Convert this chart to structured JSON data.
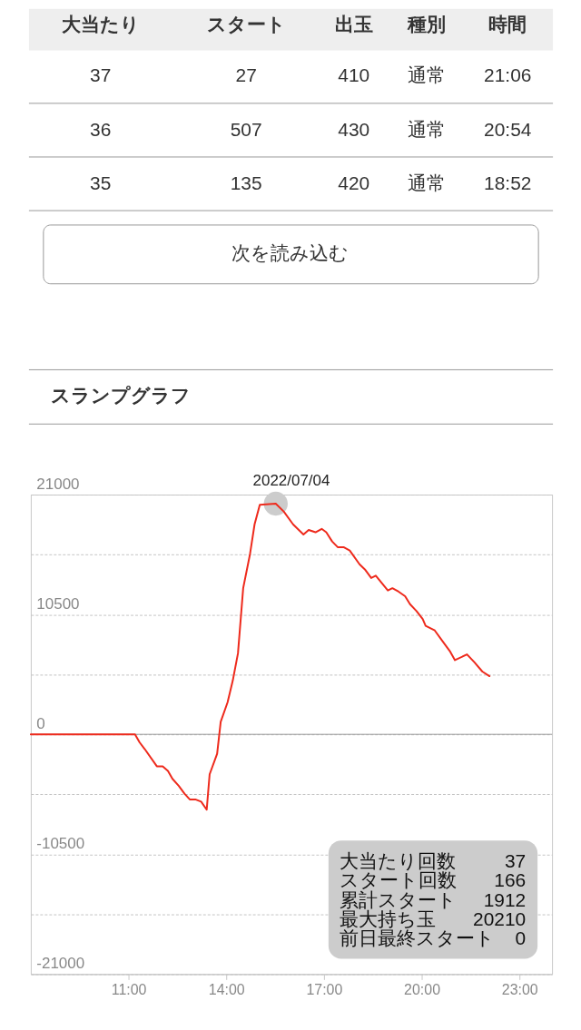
{
  "chart_data": [
    {
      "type": "other",
      "categories": [
        "大当たり",
        "スタート",
        "出玉",
        "種別",
        "時間"
      ],
      "annotations": [
        "37",
        "27",
        "410",
        "通常",
        "21:06",
        "36",
        "507",
        "430",
        "通常",
        "20:54",
        "35",
        "135",
        "420",
        "通常",
        "18:52"
      ]
    },
    {
      "type": "other",
      "annotations": [
        "次を読み込む"
      ]
    },
    {
      "type": "line",
      "title": "スランプグラフ",
      "subtitle": "2022/07/04",
      "x": [
        8,
        11.2,
        11.34,
        11.5,
        11.87,
        12.05,
        12.21,
        12.35,
        12.54,
        12.72,
        12.88,
        13.05,
        13.23,
        13.4,
        13.49,
        13.72,
        13.83,
        14.04,
        14.2,
        14.36,
        14.52,
        14.73,
        14.87,
        15.03,
        15.52,
        15.77,
        16.05,
        16.37,
        16.53,
        16.74,
        16.93,
        17.07,
        17.25,
        17.42,
        17.6,
        17.79,
        18.09,
        18.27,
        18.45,
        18.59,
        18.96,
        19.1,
        19.29,
        19.49,
        19.64,
        19.84,
        20.03,
        20.12,
        20.4,
        20.63,
        20.86,
        21.02,
        21.39,
        21.62,
        21.86,
        22.08
      ],
      "xlim": [
        8,
        24
      ],
      "xticks": [
        {
          "value": 11,
          "label": "11:00"
        },
        {
          "value": 14,
          "label": "14:00"
        },
        {
          "value": 17,
          "label": "17:00"
        },
        {
          "value": 20,
          "label": "20:00"
        },
        {
          "value": 23,
          "label": "23:00"
        }
      ],
      "ylim": [
        -21000,
        21000
      ],
      "yticks": [
        21000,
        {
          "value": 15750,
          "label": null
        },
        10500,
        {
          "value": 5250,
          "label": null
        },
        0,
        {
          "value": -5250,
          "label": null
        },
        -10500,
        {
          "value": -15750,
          "label": null
        },
        -21000
      ],
      "grid": "y",
      "line_style": "solid",
      "series": [
        {
          "type": "scatter",
          "color": "#cccccc",
          "marker": "circle",
          "x": [
            15.52
          ],
          "values": [
            20210
          ]
        },
        {
          "type": "line",
          "color": "#ee2a1c",
          "marker": "none",
          "values": [
            0,
            0,
            -700,
            -1300,
            -2800,
            -2800,
            -3200,
            -3900,
            -4500,
            -5200,
            -5700,
            -5700,
            -5900,
            -6600,
            -3500,
            -1700,
            1100,
            2800,
            4700,
            7100,
            12800,
            15800,
            18400,
            20100,
            20210,
            19500,
            18400,
            17500,
            17900,
            17700,
            18000,
            17700,
            16900,
            16400,
            16400,
            16100,
            14900,
            14400,
            13700,
            13900,
            12600,
            12800,
            12500,
            12100,
            11400,
            10800,
            10100,
            9500,
            9100,
            8200,
            7300,
            6500,
            7000,
            6300,
            5500,
            5100
          ]
        }
      ],
      "ref_lines": [
        {
          "axis": "y",
          "value": 0,
          "color": "#999999"
        }
      ],
      "annotations": [
        "大当たり回数",
        "37",
        "スタート回数",
        "166",
        "累計スタート",
        "1912",
        "最大持ち玉",
        "20210",
        "前日最終スタート",
        "0"
      ]
    }
  ]
}
